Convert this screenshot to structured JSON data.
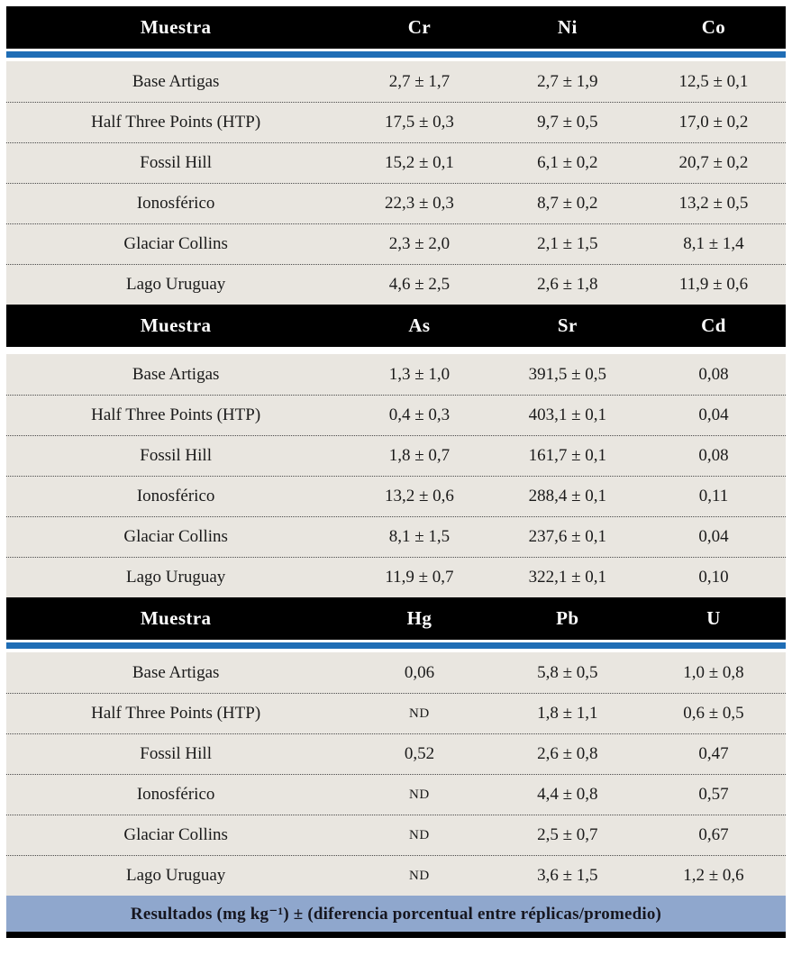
{
  "style": {
    "header_bg": "#000000",
    "header_text": "#ffffff",
    "accent_bar": "#1f6db5",
    "row_bg": "#e9e6e0",
    "footer_bg": "#8fa7cd",
    "footer_text": "#16161f"
  },
  "tables": [
    {
      "headers": [
        "Muestra",
        "Cr",
        "Ni",
        "Co"
      ],
      "rows": [
        [
          "Base Artigas",
          "2,7 ± 1,7",
          "2,7 ± 1,9",
          "12,5 ± 0,1"
        ],
        [
          "Half Three Points (HTP)",
          "17,5 ± 0,3",
          "9,7 ± 0,5",
          "17,0 ± 0,2"
        ],
        [
          "Fossil Hill",
          "15,2 ± 0,1",
          "6,1 ± 0,2",
          "20,7 ± 0,2"
        ],
        [
          "Ionosférico",
          "22,3 ± 0,3",
          "8,7 ± 0,2",
          "13,2 ± 0,5"
        ],
        [
          "Glaciar Collins",
          "2,3 ± 2,0",
          "2,1 ± 1,5",
          "8,1 ± 1,4"
        ],
        [
          "Lago Uruguay",
          "4,6 ± 2,5",
          "2,6 ± 1,8",
          "11,9 ± 0,6"
        ]
      ]
    },
    {
      "headers": [
        "Muestra",
        "As",
        "Sr",
        "Cd"
      ],
      "rows": [
        [
          "Base Artigas",
          "1,3 ± 1,0",
          "391,5 ± 0,5",
          "0,08"
        ],
        [
          "Half Three Points (HTP)",
          "0,4 ± 0,3",
          "403,1 ± 0,1",
          "0,04"
        ],
        [
          "Fossil Hill",
          "1,8 ± 0,7",
          "161,7 ± 0,1",
          "0,08"
        ],
        [
          "Ionosférico",
          "13,2 ± 0,6",
          "288,4 ± 0,1",
          "0,11"
        ],
        [
          "Glaciar Collins",
          "8,1 ± 1,5",
          "237,6 ± 0,1",
          "0,04"
        ],
        [
          "Lago Uruguay",
          "11,9 ± 0,7",
          "322,1 ± 0,1",
          "0,10"
        ]
      ]
    },
    {
      "headers": [
        "Muestra",
        "Hg",
        "Pb",
        "U"
      ],
      "rows": [
        [
          "Base Artigas",
          "0,06",
          "5,8 ± 0,5",
          "1,0 ± 0,8"
        ],
        [
          "Half Three Points (HTP)",
          "ND",
          "1,8 ± 1,1",
          "0,6 ± 0,5"
        ],
        [
          "Fossil Hill",
          "0,52",
          "2,6 ± 0,8",
          "0,47"
        ],
        [
          "Ionosférico",
          "ND",
          "4,4 ± 0,8",
          "0,57"
        ],
        [
          "Glaciar Collins",
          "ND",
          "2,5 ± 0,7",
          "0,67"
        ],
        [
          "Lago Uruguay",
          "ND",
          "3,6 ± 1,5",
          "1,2 ± 0,6"
        ]
      ]
    }
  ],
  "footer": {
    "text": "Resultados (mg kg⁻¹) ± (diferencia porcentual entre réplicas/promedio)"
  }
}
